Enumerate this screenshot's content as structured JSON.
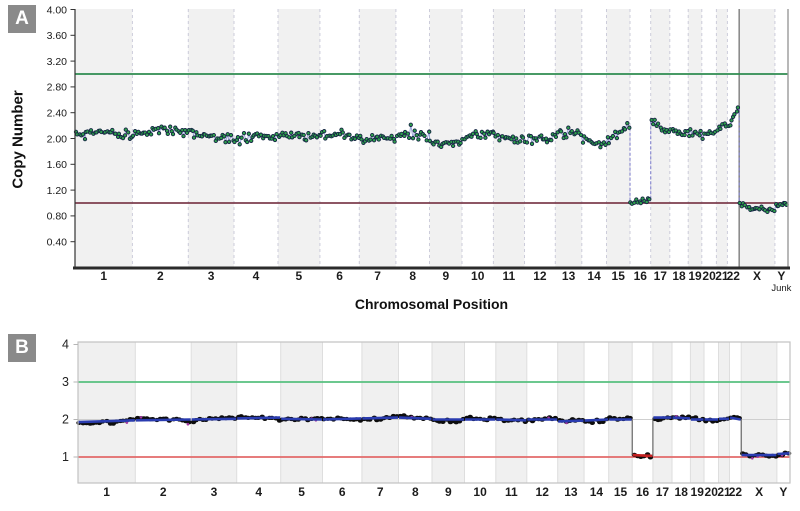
{
  "figure": {
    "panel_a_label": "A",
    "panel_b_label": "B"
  },
  "chart_data": [
    {
      "panel": "A",
      "type": "scatter",
      "title": "",
      "ylabel": "Copy Number",
      "xlabel": "Chromosomal Position",
      "ylim": [
        0,
        4
      ],
      "yticks": [
        "4.00",
        "3.60",
        "3.20",
        "2.80",
        "2.40",
        "2.00",
        "1.60",
        "1.20",
        "0.80",
        "0.40"
      ],
      "point_color": "#2fa14b",
      "point_outline": "#152544",
      "connector_color": "#9aa4da",
      "step_connector_color": "#8d8dd2",
      "band_colors": [
        "#f1f1f1",
        "#ffffff"
      ],
      "grid": "alternating-chromosome-bands",
      "legend": "none",
      "hlines": [
        {
          "name": "gain-threshold",
          "value": 3.0,
          "color": "#2e8b4f"
        },
        {
          "name": "loss-threshold",
          "value": 1.0,
          "color": "#7d3e4e"
        }
      ],
      "separator_after": "22",
      "chromosomes": [
        {
          "label": "1",
          "size": 249,
          "mean_start": 2.05,
          "mean_end": 2.05
        },
        {
          "label": "2",
          "size": 243,
          "mean_start": 2.18,
          "mean_end": 2.08
        },
        {
          "label": "3",
          "size": 198,
          "mean_start": 2.05,
          "mean_end": 2.0
        },
        {
          "label": "4",
          "size": 191,
          "mean_start": 2.0,
          "mean_end": 2.05
        },
        {
          "label": "5",
          "size": 182,
          "mean_start": 2.05,
          "mean_end": 2.0
        },
        {
          "label": "6",
          "size": 171,
          "mean_start": 2.05,
          "mean_end": 2.05
        },
        {
          "label": "7",
          "size": 159,
          "mean_start": 2.05,
          "mean_end": 2.0
        },
        {
          "label": "8",
          "size": 146,
          "mean_start": 2.0,
          "mean_end": 2.0
        },
        {
          "label": "9",
          "size": 141,
          "mean_start": 1.97,
          "mean_end": 2.0
        },
        {
          "label": "10",
          "size": 136,
          "mean_start": 2.0,
          "mean_end": 2.0
        },
        {
          "label": "11",
          "size": 135,
          "mean_start": 2.0,
          "mean_end": 2.02
        },
        {
          "label": "12",
          "size": 134,
          "mean_start": 2.05,
          "mean_end": 2.0
        },
        {
          "label": "13",
          "size": 115,
          "mean_start": 2.0,
          "mean_end": 2.05
        },
        {
          "label": "14",
          "size": 107,
          "mean_start": 2.02,
          "mean_end": 1.98
        },
        {
          "label": "15",
          "size": 102,
          "mean_start": 2.0,
          "mean_end": 2.2
        },
        {
          "label": "16",
          "size": 90,
          "mean_start": 1.0,
          "mean_end": 1.03
        },
        {
          "label": "17",
          "size": 83,
          "mean_start": 2.25,
          "mean_end": 2.1
        },
        {
          "label": "18",
          "size": 80,
          "mean_start": 2.12,
          "mean_end": 2.1
        },
        {
          "label": "19",
          "size": 59,
          "mean_start": 2.1,
          "mean_end": 2.1
        },
        {
          "label": "20",
          "size": 63,
          "mean_start": 2.1,
          "mean_end": 2.1
        },
        {
          "label": "21",
          "size": 48,
          "mean_start": 2.1,
          "mean_end": 2.15
        },
        {
          "label": "22",
          "size": 51,
          "mean_start": 2.15,
          "mean_end": 2.38
        },
        {
          "label": "X",
          "size": 155,
          "mean_start": 0.97,
          "mean_end": 0.93
        },
        {
          "label": "Y",
          "size": 57,
          "sublabel": "Junk",
          "mean_start": 0.95,
          "mean_end": 0.97
        }
      ]
    },
    {
      "panel": "B",
      "type": "scatter",
      "title": "",
      "ylabel": "",
      "xlabel": "",
      "ylim": [
        0.3,
        4.1
      ],
      "yticks": [
        "4",
        "3",
        "2",
        "1"
      ],
      "dot_color": "#0d0d0d",
      "raw_dot_color": "#a238a0",
      "default_segment_color": "#2a3cb0",
      "band_colors": [
        "#f0f0f0",
        "#ffffff"
      ],
      "grid": "alternating-chromosome-bands",
      "legend": "none",
      "gridline_value": 2,
      "hlines": [
        {
          "name": "gain-threshold",
          "value": 3,
          "color": "#57c17f"
        },
        {
          "name": "loss-threshold",
          "value": 1,
          "color": "#e26a6a"
        }
      ],
      "chromosomes": [
        {
          "label": "1",
          "size": 249,
          "mean_start": 1.93,
          "mean_end": 1.98,
          "seg_color": "#2a3cb0"
        },
        {
          "label": "2",
          "size": 243,
          "mean_start": 1.98,
          "mean_end": 2.0,
          "seg_color": "#2a3cb0"
        },
        {
          "label": "3",
          "size": 198,
          "mean_start": 2.0,
          "mean_end": 2.02,
          "seg_color": "#2a3cb0"
        },
        {
          "label": "4",
          "size": 191,
          "mean_start": 2.03,
          "mean_end": 2.05,
          "seg_color": "#2a3cb0"
        },
        {
          "label": "5",
          "size": 182,
          "mean_start": 2.02,
          "mean_end": 2.0,
          "seg_color": "#2a3cb0"
        },
        {
          "label": "6",
          "size": 171,
          "mean_start": 2.0,
          "mean_end": 2.03,
          "seg_color": "#2a3cb0"
        },
        {
          "label": "7",
          "size": 159,
          "mean_start": 2.03,
          "mean_end": 2.05,
          "seg_color": "#2a3cb0"
        },
        {
          "label": "8",
          "size": 146,
          "mean_start": 2.05,
          "mean_end": 2.02,
          "seg_color": "#2a3cb0"
        },
        {
          "label": "9",
          "size": 141,
          "mean_start": 2.0,
          "mean_end": 2.0,
          "seg_color": "#2a3cb0"
        },
        {
          "label": "10",
          "size": 136,
          "mean_start": 2.0,
          "mean_end": 2.0,
          "seg_color": "#2a3cb0"
        },
        {
          "label": "11",
          "size": 135,
          "mean_start": 2.0,
          "mean_end": 1.98,
          "seg_color": "#2a3cb0"
        },
        {
          "label": "12",
          "size": 134,
          "mean_start": 2.0,
          "mean_end": 2.0,
          "seg_color": "#2a3cb0"
        },
        {
          "label": "13",
          "size": 115,
          "mean_start": 1.95,
          "mean_end": 1.97,
          "seg_color": "#2a3cb0"
        },
        {
          "label": "14",
          "size": 107,
          "mean_start": 1.97,
          "mean_end": 2.0,
          "seg_color": "#2a3cb0"
        },
        {
          "label": "15",
          "size": 102,
          "mean_start": 2.0,
          "mean_end": 2.0,
          "seg_color": "#2a3cb0"
        },
        {
          "label": "16",
          "size": 90,
          "mean_start": 1.05,
          "mean_end": 1.03,
          "seg_color": "#c42020"
        },
        {
          "label": "17",
          "size": 83,
          "mean_start": 2.05,
          "mean_end": 2.05,
          "seg_color": "#2a3cb0"
        },
        {
          "label": "18",
          "size": 80,
          "mean_start": 2.05,
          "mean_end": 2.03,
          "seg_color": "#2a3cb0"
        },
        {
          "label": "19",
          "size": 59,
          "mean_start": 2.0,
          "mean_end": 2.0,
          "seg_color": "#2a3cb0"
        },
        {
          "label": "20",
          "size": 63,
          "mean_start": 2.0,
          "mean_end": 2.0,
          "seg_color": "#2a3cb0"
        },
        {
          "label": "21",
          "size": 48,
          "mean_start": 2.02,
          "mean_end": 2.02,
          "seg_color": "#2a3cb0"
        },
        {
          "label": "22",
          "size": 51,
          "mean_start": 2.05,
          "mean_end": 2.0,
          "seg_color": "#2a3cb0"
        },
        {
          "label": "X",
          "size": 155,
          "mean_start": 1.05,
          "mean_end": 1.05,
          "seg_color": "#2a3cb0"
        },
        {
          "label": "Y",
          "size": 57,
          "mean_start": 1.08,
          "mean_end": 1.1,
          "seg_color": "#2a3cb0"
        }
      ]
    }
  ]
}
